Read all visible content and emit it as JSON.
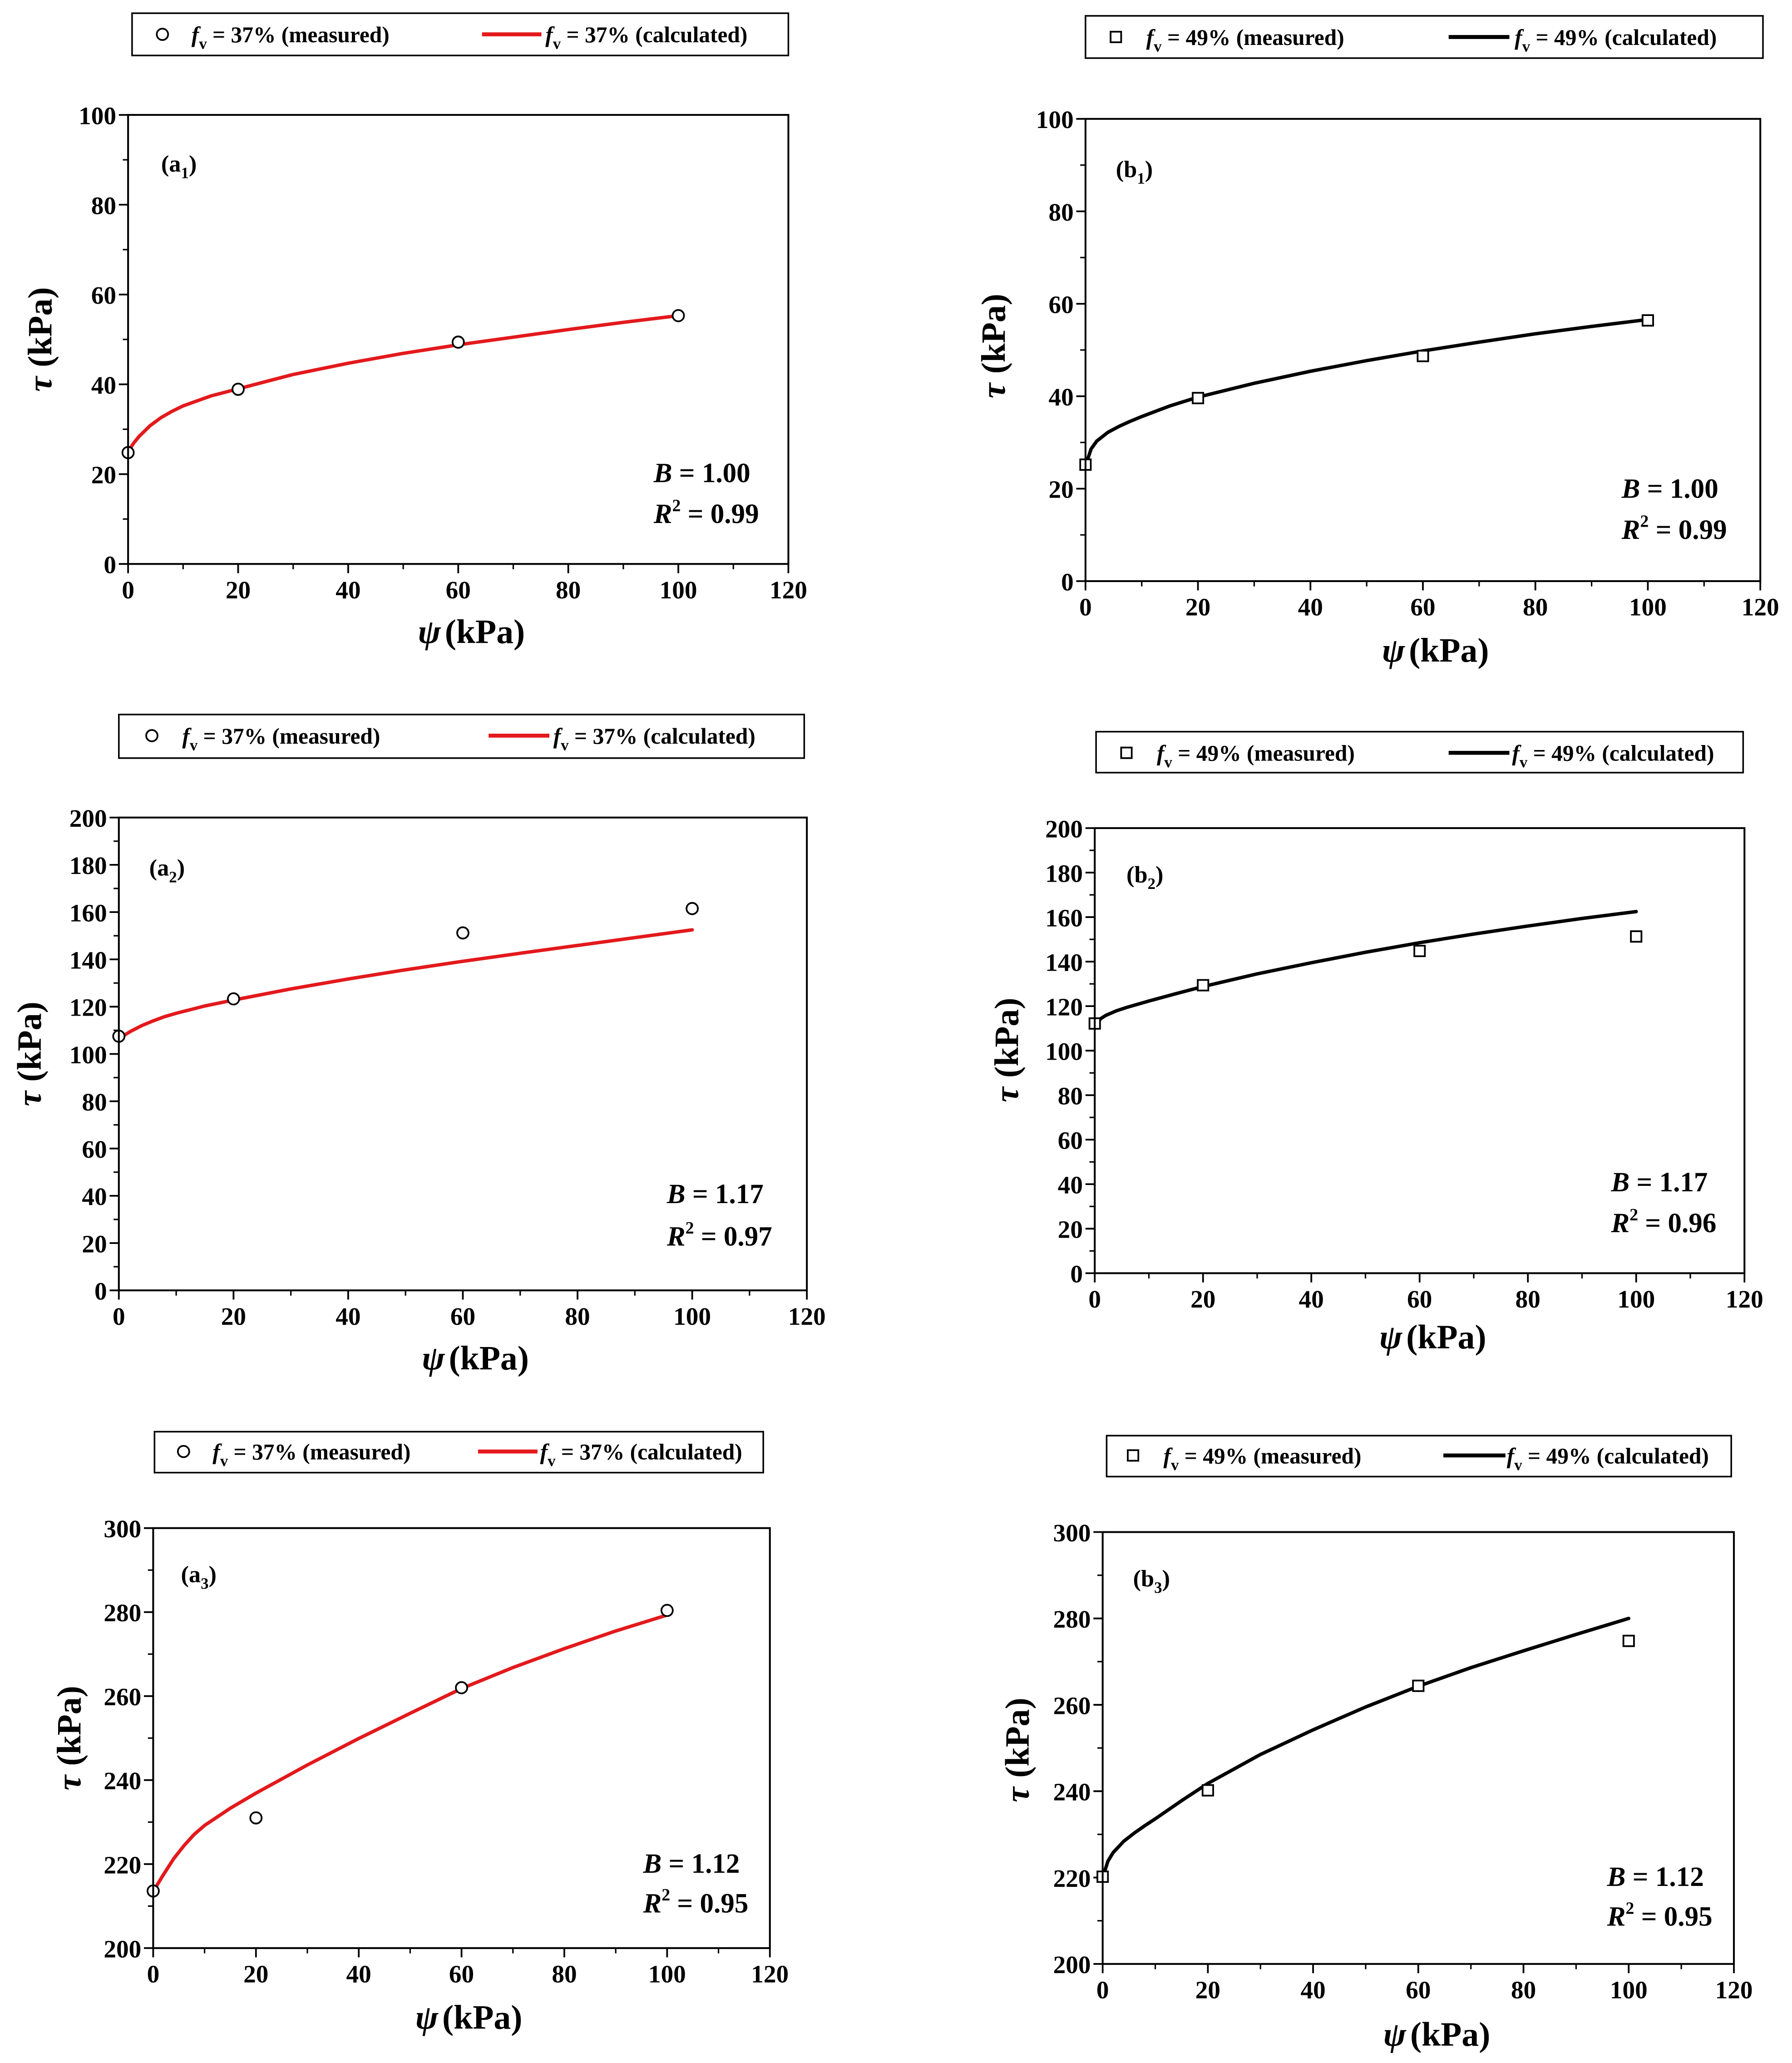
{
  "chart_data": [
    {
      "type": "scatter",
      "panel_label": {
        "pre": "(a",
        "sub": "1",
        "post": ")"
      },
      "xlabel": {
        "symbol": "ψ",
        "unit": "(kPa)"
      },
      "ylabel": {
        "symbol": "τ",
        "unit": "(kPa)"
      },
      "xlim": [
        0,
        120
      ],
      "ylim": [
        0,
        100
      ],
      "xticks": [
        0,
        20,
        40,
        60,
        80,
        100,
        120
      ],
      "yticks": [
        0,
        20,
        40,
        60,
        80,
        100
      ],
      "series": [
        {
          "marker": "circle",
          "color": "#000000",
          "legend": {
            "var": "f",
            "sub": "v",
            "text": " = 37% (measured)"
          },
          "x": [
            0,
            20,
            60,
            100
          ],
          "y": [
            24.8,
            38.9,
            49.4,
            55.3
          ]
        },
        {
          "marker": "line",
          "color": "#e3191c",
          "legend": {
            "var": "f",
            "sub": "v",
            "text": " = 37% (calculated)"
          },
          "x": [
            0,
            1,
            2,
            4,
            6,
            8,
            10,
            15,
            20,
            30,
            40,
            50,
            60,
            70,
            80,
            90,
            100
          ],
          "y": [
            25.0,
            26.9,
            28.4,
            30.8,
            32.6,
            34.0,
            35.2,
            37.4,
            39.0,
            42.2,
            44.7,
            46.9,
            48.8,
            50.5,
            52.2,
            53.8,
            55.3
          ]
        }
      ],
      "annotations": [
        {
          "var": "B",
          "value": " = 1.00"
        },
        {
          "var": "R",
          "sup": "2",
          "value": " = 0.99"
        }
      ]
    },
    {
      "type": "scatter",
      "panel_label": {
        "pre": "(b",
        "sub": "1",
        "post": ")"
      },
      "xlabel": {
        "symbol": "ψ",
        "unit": "(kPa)"
      },
      "ylabel": {
        "symbol": "τ",
        "unit": "(kPa)"
      },
      "xlim": [
        0,
        120
      ],
      "ylim": [
        0,
        100
      ],
      "xticks": [
        0,
        20,
        40,
        60,
        80,
        100,
        120
      ],
      "yticks": [
        0,
        20,
        40,
        60,
        80,
        100
      ],
      "series": [
        {
          "marker": "square",
          "color": "#000000",
          "legend": {
            "var": "f",
            "sub": "v",
            "text": " = 49% (measured)"
          },
          "x": [
            0,
            20,
            60,
            100
          ],
          "y": [
            25.2,
            39.6,
            48.7,
            56.4
          ]
        },
        {
          "marker": "line",
          "color": "#000000",
          "legend": {
            "var": "f",
            "sub": "v",
            "text": " = 49% (calculated)"
          },
          "x": [
            0,
            1,
            2,
            4,
            6,
            8,
            10,
            15,
            20,
            30,
            40,
            50,
            60,
            70,
            80,
            90,
            100
          ],
          "y": [
            25.0,
            28.6,
            30.3,
            32.2,
            33.5,
            34.6,
            35.6,
            37.9,
            39.8,
            42.8,
            45.4,
            47.7,
            49.8,
            51.7,
            53.5,
            55.1,
            56.6
          ]
        }
      ],
      "annotations": [
        {
          "var": "B",
          "value": " = 1.00"
        },
        {
          "var": "R",
          "sup": "2",
          "value": " = 0.99"
        }
      ]
    },
    {
      "type": "scatter",
      "panel_label": {
        "pre": "(a",
        "sub": "2",
        "post": ")"
      },
      "xlabel": {
        "symbol": "ψ",
        "unit": "(kPa)"
      },
      "ylabel": {
        "symbol": "τ",
        "unit": "(kPa)"
      },
      "xlim": [
        0,
        120
      ],
      "ylim": [
        0,
        200
      ],
      "xticks": [
        0,
        20,
        40,
        60,
        80,
        100,
        120
      ],
      "yticks": [
        0,
        20,
        40,
        60,
        80,
        100,
        120,
        140,
        160,
        180,
        200
      ],
      "series": [
        {
          "marker": "circle",
          "color": "#000000",
          "legend": {
            "var": "f",
            "sub": "v",
            "text": " = 37% (measured)"
          },
          "x": [
            0,
            20,
            60,
            100
          ],
          "y": [
            107.5,
            123.3,
            151.2,
            161.5
          ]
        },
        {
          "marker": "line",
          "color": "#e3191c",
          "legend": {
            "var": "f",
            "sub": "v",
            "text": " = 37% (calculated)"
          },
          "x": [
            0,
            1,
            2,
            4,
            6,
            8,
            10,
            15,
            20,
            30,
            40,
            50,
            60,
            70,
            80,
            90,
            100
          ],
          "y": [
            106.5,
            108.0,
            109.5,
            112.0,
            114.0,
            115.8,
            117.2,
            120.3,
            122.8,
            127.5,
            131.7,
            135.6,
            139.2,
            142.6,
            145.9,
            149.2,
            152.5
          ]
        }
      ],
      "annotations": [
        {
          "var": "B",
          "value": " = 1.17"
        },
        {
          "var": "R",
          "sup": "2",
          "value": " = 0.97"
        }
      ]
    },
    {
      "type": "scatter",
      "panel_label": {
        "pre": "(b",
        "sub": "2",
        "post": ")"
      },
      "xlabel": {
        "symbol": "ψ",
        "unit": "(kPa)"
      },
      "ylabel": {
        "symbol": "τ",
        "unit": "(kPa)"
      },
      "xlim": [
        0,
        120
      ],
      "ylim": [
        0,
        200
      ],
      "xticks": [
        0,
        20,
        40,
        60,
        80,
        100,
        120
      ],
      "yticks": [
        0,
        20,
        40,
        60,
        80,
        100,
        120,
        140,
        160,
        180,
        200
      ],
      "series": [
        {
          "marker": "square",
          "color": "#000000",
          "legend": {
            "var": "f",
            "sub": "v",
            "text": " = 49% (measured)"
          },
          "x": [
            0,
            20,
            60,
            100
          ],
          "y": [
            112.2,
            129.4,
            144.8,
            151.3
          ]
        },
        {
          "marker": "line",
          "color": "#000000",
          "legend": {
            "var": "f",
            "sub": "v",
            "text": " = 49% (calculated)"
          },
          "x": [
            0,
            1,
            2,
            4,
            6,
            8,
            10,
            15,
            20,
            30,
            40,
            50,
            60,
            70,
            80,
            90,
            100
          ],
          "y": [
            110.0,
            114.2,
            115.8,
            117.9,
            119.5,
            120.9,
            122.3,
            125.6,
            128.8,
            134.5,
            139.5,
            144.2,
            148.5,
            152.4,
            156.0,
            159.4,
            162.5
          ]
        }
      ],
      "annotations": [
        {
          "var": "B",
          "value": " = 1.17"
        },
        {
          "var": "R",
          "sup": "2",
          "value": " = 0.96"
        }
      ]
    },
    {
      "type": "scatter",
      "panel_label": {
        "pre": "(a",
        "sub": "3",
        "post": ")"
      },
      "xlabel": {
        "symbol": "ψ",
        "unit": "(kPa)"
      },
      "ylabel": {
        "symbol": "τ",
        "unit": "(kPa)"
      },
      "xlim": [
        0,
        120
      ],
      "ylim": [
        200,
        300
      ],
      "xticks": [
        0,
        20,
        40,
        60,
        80,
        100,
        120
      ],
      "yticks": [
        200,
        220,
        240,
        260,
        280,
        300
      ],
      "series": [
        {
          "marker": "circle",
          "color": "#000000",
          "legend": {
            "var": "f",
            "sub": "v",
            "text": " = 37% (measured)"
          },
          "x": [
            0,
            20,
            60,
            100
          ],
          "y": [
            213.6,
            231.0,
            262.0,
            280.4
          ]
        },
        {
          "marker": "line",
          "color": "#e3191c",
          "legend": {
            "var": "f",
            "sub": "v",
            "text": " = 37% (calculated)"
          },
          "x": [
            0,
            1,
            2,
            4,
            6,
            8,
            10,
            15,
            20,
            30,
            40,
            50,
            60,
            70,
            80,
            90,
            100
          ],
          "y": [
            213.5,
            215.5,
            217.5,
            221.3,
            224.4,
            227.1,
            229.2,
            233.3,
            236.9,
            243.6,
            249.9,
            255.9,
            261.8,
            266.8,
            271.3,
            275.5,
            279.3
          ]
        }
      ],
      "annotations": [
        {
          "var": "B",
          "value": " = 1.12"
        },
        {
          "var": "R",
          "sup": "2",
          "value": " = 0.95"
        }
      ]
    },
    {
      "type": "scatter",
      "panel_label": {
        "pre": "(b",
        "sub": "3",
        "post": ")"
      },
      "xlabel": {
        "symbol": "ψ",
        "unit": "(kPa)"
      },
      "ylabel": {
        "symbol": "τ",
        "unit": "(kPa)"
      },
      "xlim": [
        0,
        120
      ],
      "ylim": [
        200,
        300
      ],
      "xticks": [
        0,
        20,
        40,
        60,
        80,
        100,
        120
      ],
      "yticks": [
        200,
        220,
        240,
        260,
        280,
        300
      ],
      "series": [
        {
          "marker": "square",
          "color": "#000000",
          "legend": {
            "var": "f",
            "sub": "v",
            "text": " = 49% (measured)"
          },
          "x": [
            0,
            20,
            60,
            100
          ],
          "y": [
            220.2,
            240.2,
            264.4,
            274.8
          ]
        },
        {
          "marker": "line",
          "color": "#000000",
          "legend": {
            "var": "f",
            "sub": "v",
            "text": " = 49% (calculated)"
          },
          "x": [
            0,
            1,
            2,
            4,
            6,
            8,
            10,
            15,
            20,
            30,
            40,
            50,
            60,
            70,
            80,
            90,
            100
          ],
          "y": [
            220.0,
            223.8,
            225.8,
            228.4,
            230.3,
            232.0,
            233.6,
            237.8,
            241.8,
            248.5,
            254.2,
            259.5,
            264.3,
            268.6,
            272.5,
            276.3,
            280.0
          ]
        }
      ],
      "annotations": [
        {
          "var": "B",
          "value": " = 1.12"
        },
        {
          "var": "R",
          "sup": "2",
          "value": " = 0.95"
        }
      ]
    }
  ]
}
